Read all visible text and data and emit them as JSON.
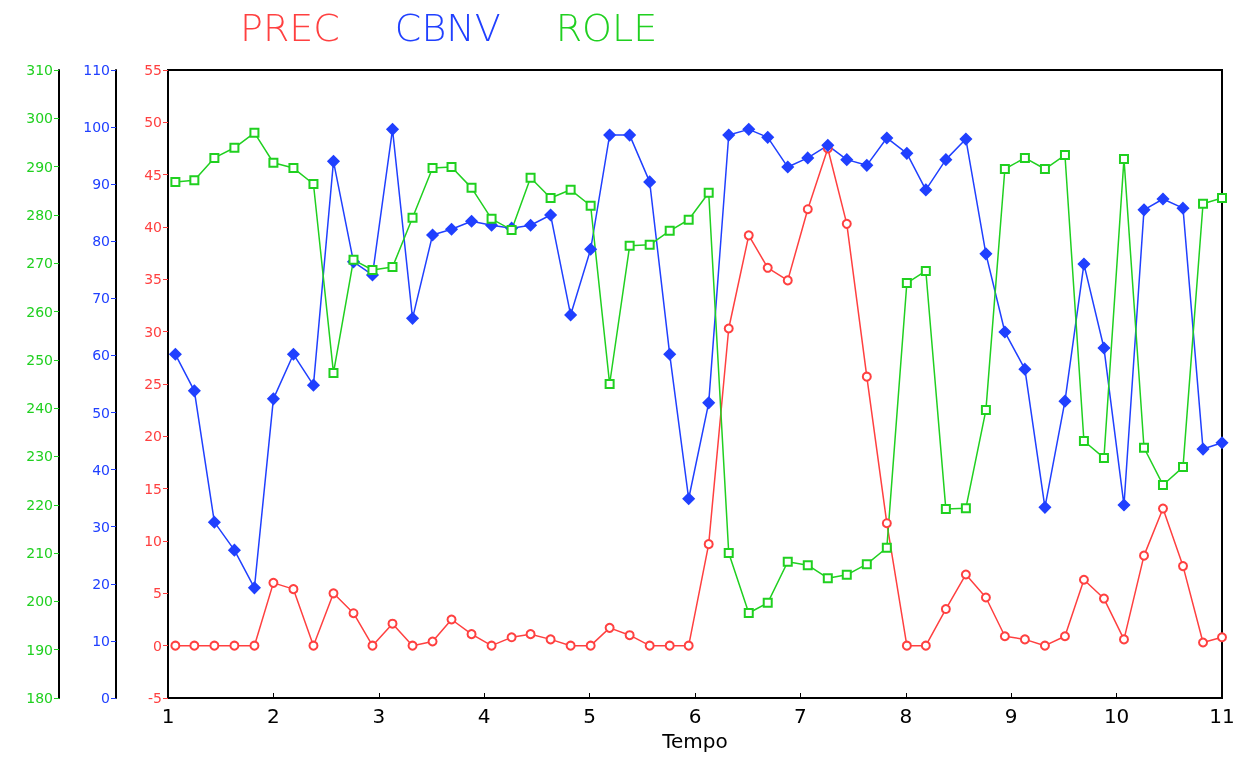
{
  "chart_data": {
    "type": "line",
    "xlabel": "Tempo",
    "xlim": [
      1,
      11
    ],
    "xticks": [
      1,
      2,
      3,
      4,
      5,
      6,
      7,
      8,
      9,
      10,
      11
    ],
    "x": [
      1.07,
      1.25,
      1.44,
      1.63,
      1.82,
      2.0,
      2.19,
      2.38,
      2.57,
      2.76,
      2.94,
      3.13,
      3.32,
      3.51,
      3.69,
      3.88,
      4.07,
      4.26,
      4.44,
      4.63,
      4.82,
      5.01,
      5.19,
      5.38,
      5.57,
      5.76,
      5.94,
      6.13,
      6.32,
      6.51,
      6.69,
      6.88,
      7.07,
      7.26,
      7.44,
      7.63,
      7.82,
      8.01,
      8.19,
      8.38,
      8.57,
      8.76,
      8.94,
      9.13,
      9.32,
      9.51,
      9.69,
      9.88,
      10.07,
      10.26,
      10.44,
      10.63,
      10.82,
      11.0
    ],
    "ylim": [
      -5,
      55
    ],
    "yticks": [
      -5,
      0,
      5,
      10,
      15,
      20,
      25,
      30,
      35,
      40,
      45,
      50,
      55
    ],
    "y2lim": [
      0,
      110
    ],
    "y2ticks": [
      0,
      10,
      20,
      30,
      40,
      50,
      60,
      70,
      80,
      90,
      100,
      110
    ],
    "y3lim": [
      180,
      310
    ],
    "y3ticks": [
      180,
      190,
      200,
      210,
      220,
      230,
      240,
      250,
      260,
      270,
      280,
      290,
      300,
      310
    ],
    "grid": false,
    "legend": "top",
    "line_style": "solid",
    "series": [
      {
        "name": "PREC",
        "color": "#ff4040",
        "axis": "y",
        "marker": "circle",
        "values": [
          0,
          0,
          0,
          0,
          0,
          6.0,
          5.4,
          0,
          5.0,
          3.1,
          0,
          2.1,
          0,
          0.4,
          2.5,
          1.1,
          0,
          0.8,
          1.1,
          0.6,
          0,
          0,
          1.7,
          1.0,
          0,
          0,
          0,
          9.7,
          30.3,
          39.2,
          36.1,
          34.9,
          41.7,
          47.5,
          40.3,
          25.7,
          11.7,
          0,
          0,
          3.5,
          6.8,
          4.6,
          0.9,
          0.6,
          0,
          0.9,
          6.3,
          4.5,
          0.6,
          8.6,
          13.1,
          7.6,
          0.3,
          0.8
        ]
      },
      {
        "name": "CBNV",
        "color": "#2040ff",
        "axis": "y2",
        "marker": "diamond",
        "values": [
          60.2,
          53.8,
          30.8,
          25.9,
          19.3,
          52.4,
          60.2,
          54.8,
          94.0,
          76.4,
          74.1,
          99.6,
          66.5,
          81.1,
          82.1,
          83.5,
          82.8,
          82.3,
          82.8,
          84.6,
          67.1,
          78.6,
          98.6,
          98.6,
          90.4,
          60.2,
          34.9,
          51.7,
          98.6,
          99.6,
          98.2,
          93.0,
          94.6,
          96.8,
          94.3,
          93.3,
          98.1,
          95.4,
          89.0,
          94.3,
          97.9,
          77.8,
          64.1,
          57.6,
          33.4,
          52.0,
          76.0,
          61.3,
          33.8,
          85.5,
          87.4,
          85.8,
          43.6,
          44.7
        ]
      },
      {
        "name": "ROLE",
        "color": "#20d020",
        "axis": "y3",
        "marker": "square",
        "values": [
          286.8,
          287.2,
          291.8,
          293.9,
          297.0,
          290.8,
          289.7,
          286.4,
          247.3,
          270.7,
          268.6,
          269.2,
          279.4,
          289.7,
          289.9,
          285.6,
          279.2,
          276.9,
          287.7,
          283.5,
          285.2,
          281.9,
          245.0,
          273.6,
          273.8,
          276.7,
          279.0,
          284.6,
          210.0,
          197.6,
          199.7,
          208.2,
          207.5,
          204.8,
          205.5,
          207.7,
          211.1,
          265.9,
          268.4,
          219.1,
          219.3,
          239.6,
          289.5,
          291.8,
          289.5,
          292.4,
          233.2,
          229.7,
          291.6,
          231.8,
          224.1,
          227.8,
          282.3,
          283.5
        ]
      }
    ]
  }
}
